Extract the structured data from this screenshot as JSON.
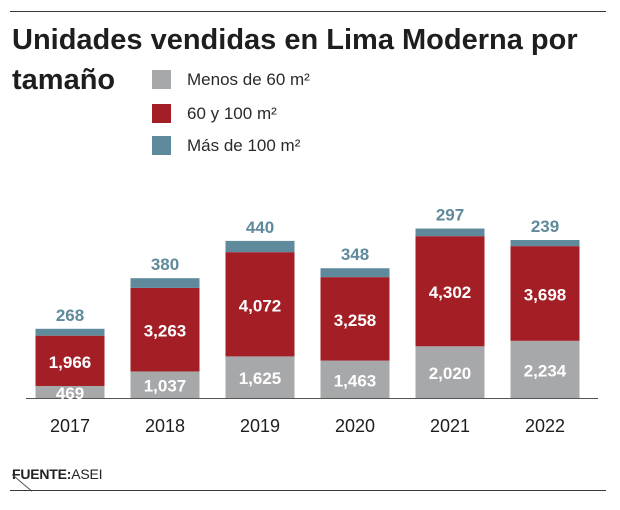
{
  "chart_data": {
    "type": "bar",
    "stacked": true,
    "title": "Unidades vendidas en Lima Moderna por tamaño",
    "categories": [
      "2017",
      "2018",
      "2019",
      "2020",
      "2021",
      "2022"
    ],
    "series": [
      {
        "name": "Menos de 60 m²",
        "color": "#a7a8aa",
        "values": [
          469,
          1037,
          1625,
          1463,
          2020,
          2234
        ]
      },
      {
        "name": "60 y 100 m²",
        "color": "#a31f25",
        "values": [
          1966,
          3263,
          4072,
          3258,
          4302,
          3698
        ]
      },
      {
        "name": "Más de 100 m²",
        "color": "#5e8a9c",
        "values": [
          268,
          380,
          440,
          348,
          297,
          239
        ]
      }
    ],
    "data_labels": {
      "Menos de 60 m²": [
        "469",
        "1,037",
        "1,625",
        "1,463",
        "2,020",
        "2,234"
      ],
      "60 y 100 m²": [
        "1,966",
        "3,263",
        "4,072",
        "3,258",
        "4,302",
        "3,698"
      ],
      "Más de 100 m²": [
        "268",
        "380",
        "440",
        "348",
        "297",
        "239"
      ]
    },
    "legend_position": "top-left",
    "grid": false
  },
  "source": {
    "label": "FUENTE:",
    "value": "ASEI"
  },
  "colors": {
    "total_label": "#5e8a9c",
    "inner_label": "#ffffff",
    "axis": "#555555"
  }
}
